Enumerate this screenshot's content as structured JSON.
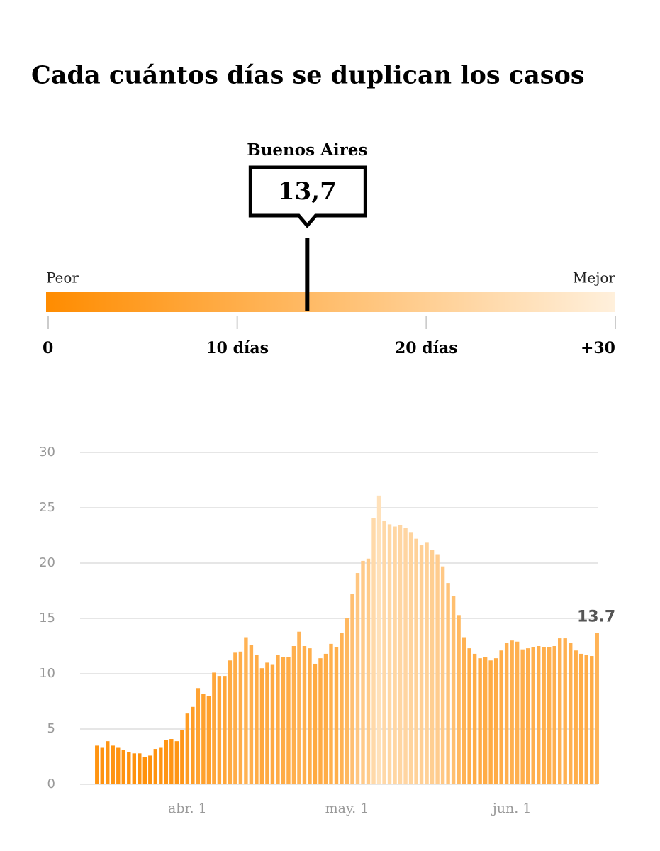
{
  "title": "Cada cuántos días se duplican los casos",
  "chart_data": [
    {
      "type": "gauge",
      "title": "Buenos Aires",
      "value": 13.7,
      "value_label": "13,7",
      "left_label": "Peor",
      "right_label": "Mejor",
      "xlim": [
        0,
        30
      ],
      "xticks": [
        0,
        {
          "value": 10,
          "label": "10 días"
        },
        {
          "value": 20,
          "label": "20 días"
        },
        {
          "value": 30,
          "label": "+30"
        }
      ],
      "color_scale": [
        "#ff8c00",
        "#fff0dc"
      ]
    },
    {
      "type": "bar",
      "categories": [
        null,
        null,
        null,
        null,
        null,
        null,
        null,
        null,
        null,
        null,
        null,
        null,
        null,
        null,
        null,
        null,
        null,
        "abr. 1",
        null,
        null,
        null,
        null,
        null,
        null,
        null,
        null,
        null,
        null,
        null,
        null,
        null,
        null,
        null,
        null,
        null,
        null,
        null,
        null,
        null,
        null,
        null,
        null,
        null,
        null,
        null,
        null,
        null,
        "may. 1",
        null,
        null,
        null,
        null,
        null,
        null,
        null,
        null,
        null,
        null,
        null,
        null,
        null,
        null,
        null,
        null,
        null,
        null,
        null,
        null,
        null,
        null,
        null,
        null,
        null,
        null,
        null,
        null,
        null,
        null,
        "jun. 1",
        null,
        null,
        null,
        null,
        null,
        null,
        null,
        null,
        null,
        null,
        null,
        null,
        null,
        null,
        null,
        null
      ],
      "values": [
        3.5,
        3.3,
        3.9,
        3.5,
        3.3,
        3.1,
        2.9,
        2.8,
        2.8,
        2.5,
        2.6,
        3.2,
        3.3,
        4.0,
        4.1,
        3.9,
        4.9,
        6.4,
        7.0,
        8.7,
        8.2,
        8.0,
        10.1,
        9.8,
        9.8,
        11.2,
        11.9,
        12.0,
        13.3,
        12.6,
        11.7,
        10.5,
        11.0,
        10.8,
        11.7,
        11.5,
        11.5,
        12.5,
        13.8,
        12.5,
        12.3,
        10.9,
        11.4,
        11.8,
        12.7,
        12.4,
        13.7,
        15.0,
        17.2,
        19.1,
        20.2,
        20.4,
        24.1,
        26.1,
        23.8,
        23.5,
        23.3,
        23.4,
        23.2,
        22.8,
        22.2,
        21.6,
        21.9,
        21.2,
        20.8,
        19.7,
        18.2,
        17.0,
        15.3,
        13.3,
        12.3,
        11.8,
        11.4,
        11.5,
        11.2,
        11.4,
        12.1,
        12.8,
        13.0,
        12.9,
        12.2,
        12.3,
        12.4,
        12.5,
        12.4,
        12.4,
        12.5,
        13.2,
        13.2,
        12.8,
        12.1,
        11.8,
        11.7,
        11.6,
        13.7
      ],
      "color_scale": [
        "#ff8c00",
        "#fff0dc"
      ],
      "ylim": [
        0,
        30
      ],
      "yticks": [
        0,
        5,
        10,
        15,
        20,
        25,
        30
      ],
      "grid": true
    }
  ]
}
